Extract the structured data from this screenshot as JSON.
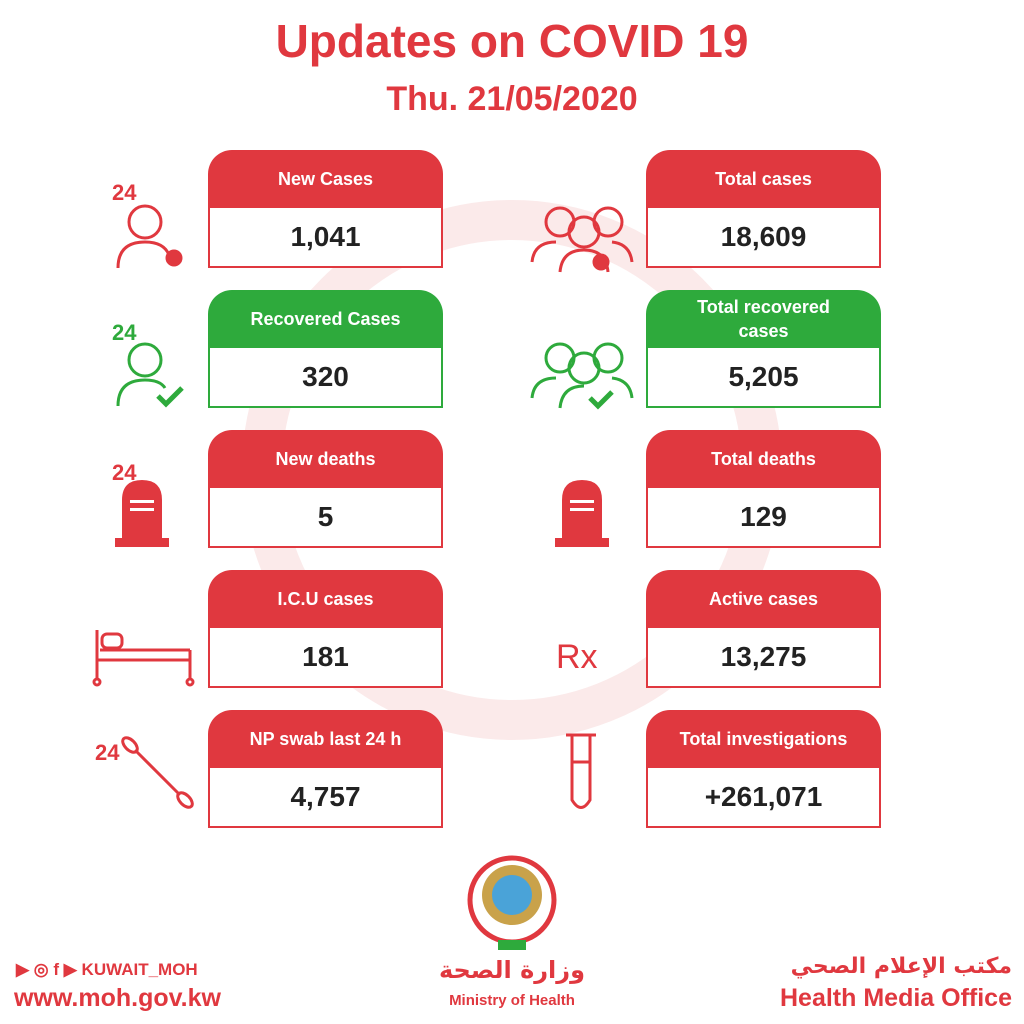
{
  "header": {
    "title": "Updates on COVID 19",
    "date": "Thu. 21/05/2020"
  },
  "cards": [
    {
      "label": "New Cases",
      "value": "1,041",
      "color": "#e0383f",
      "icon_label": "24"
    },
    {
      "label": "Total cases",
      "value": "18,609",
      "color": "#e0383f"
    },
    {
      "label": "Recovered Cases",
      "value": "320",
      "color": "#2eaa3c",
      "icon_label": "24"
    },
    {
      "label": "Total recovered cases",
      "value": "5,205",
      "color": "#2eaa3c"
    },
    {
      "label": "New deaths",
      "value": "5",
      "color": "#e0383f",
      "icon_label": "24"
    },
    {
      "label": "Total deaths",
      "value": "129",
      "color": "#e0383f"
    },
    {
      "label": "I.C.U cases",
      "value": "181",
      "color": "#e0383f"
    },
    {
      "label": "Active cases",
      "value": "13,275",
      "color": "#e0383f",
      "icon_label": "Rx"
    },
    {
      "label": "NP swab last 24 h",
      "value": "4,757",
      "color": "#e0383f",
      "icon_label": "24"
    },
    {
      "label": "Total investigations",
      "value": "+261,071",
      "color": "#e0383f"
    }
  ],
  "footer": {
    "social": "KUWAIT_MOH",
    "website": "www.moh.gov.kw",
    "ministry_ar": "وزارة الصحة",
    "ministry_en": "Ministry of Health",
    "office_ar": "مكتب الإعلام الصحي",
    "office_en": "Health Media Office"
  }
}
